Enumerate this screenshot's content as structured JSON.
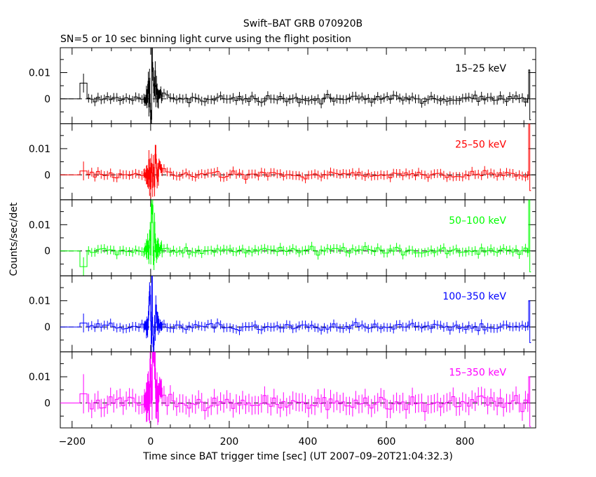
{
  "chart_data": {
    "type": "line",
    "title": "Swift–BAT GRB 070920B",
    "subtitle": "SN=5 or 10 sec binning light curve using the flight position",
    "xlabel": "Time since BAT trigger time [sec] (UT 2007–09–20T21:04:32.3)",
    "ylabel": "Counts/sec/det",
    "xlim": [
      -230,
      980
    ],
    "x_ticks": [
      -200,
      0,
      200,
      400,
      600,
      800
    ],
    "x_tick_labels": [
      "−200",
      "0",
      "200",
      "400",
      "600",
      "800"
    ],
    "y_ticks": [
      0,
      0.01
    ],
    "y_tick_labels": [
      "0",
      "0.01"
    ],
    "grid": false,
    "panels": [
      {
        "name": "15–25 keV",
        "color": "#000000",
        "ylim": [
          -0.0095,
          0.0195
        ],
        "pre_level": 0.006,
        "peak": 0.017,
        "tail": 0.0016,
        "noise": 0.0012,
        "tail_spike": 0.011,
        "tail_dip": -0.008
      },
      {
        "name": "25–50 keV",
        "color": "#ff0000",
        "ylim": [
          -0.0095,
          0.0195
        ],
        "pre_level": 0.0015,
        "peak": 0.02,
        "tail": 0.0035,
        "noise": 0.0012,
        "tail_spike": 0.02,
        "tail_dip": -0.006
      },
      {
        "name": "50–100 keV",
        "color": "#00ff00",
        "ylim": [
          -0.0095,
          0.0195
        ],
        "pre_level": -0.006,
        "peak": 0.02,
        "tail": 0.0015,
        "noise": 0.0012,
        "tail_spike": 0.02,
        "tail_dip": -0.008
      },
      {
        "name": "100–350 keV",
        "color": "#0000ff",
        "ylim": [
          -0.0095,
          0.0195
        ],
        "pre_level": 0.0015,
        "peak": 0.02,
        "tail": 0.0005,
        "noise": 0.0012,
        "tail_spike": 0.01,
        "tail_dip": -0.006
      },
      {
        "name": "15–350 keV",
        "color": "#ff00ff",
        "ylim": [
          -0.0095,
          0.0195
        ],
        "pre_level": 0.0035,
        "peak": 0.02,
        "tail": 0.0055,
        "noise": 0.0025,
        "tail_spike": 0.01,
        "tail_dip": -0.009
      }
    ]
  }
}
